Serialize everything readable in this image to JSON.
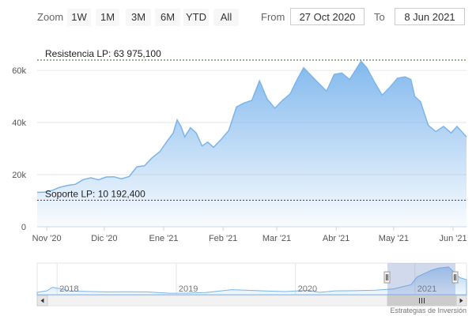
{
  "range_selector": {
    "zoom_label": "Zoom",
    "buttons": [
      "1W",
      "1M",
      "3M",
      "6M",
      "YTD",
      "All"
    ],
    "from_label": "From",
    "from_value": "27 Oct 2020",
    "to_label": "To",
    "to_value": "8 Jun 2021"
  },
  "chart_data": {
    "type": "area",
    "title": "",
    "xlabel": "",
    "ylabel": "",
    "x_ticks": [
      "Nov '20",
      "Dic '20",
      "Ene '21",
      "Feb '21",
      "Mar '21",
      "Abr '21",
      "May '21",
      "Jun '21"
    ],
    "y_ticks": [
      "0",
      "20k",
      "40k",
      "60k"
    ],
    "ylim": [
      0,
      67000
    ],
    "x_start": "2020-10-27",
    "x_end": "2021-06-08",
    "series": [
      {
        "color": "#7cb5ec",
        "points": [
          [
            "2020-10-27",
            13200
          ],
          [
            "2020-10-31",
            13300
          ],
          [
            "2020-11-04",
            14000
          ],
          [
            "2020-11-08",
            15200
          ],
          [
            "2020-11-12",
            15900
          ],
          [
            "2020-11-16",
            16300
          ],
          [
            "2020-11-20",
            18100
          ],
          [
            "2020-11-24",
            18800
          ],
          [
            "2020-11-28",
            18000
          ],
          [
            "2020-12-02",
            19100
          ],
          [
            "2020-12-06",
            19200
          ],
          [
            "2020-12-10",
            18400
          ],
          [
            "2020-12-14",
            19300
          ],
          [
            "2020-12-18",
            23000
          ],
          [
            "2020-12-22",
            23400
          ],
          [
            "2020-12-26",
            26500
          ],
          [
            "2020-12-30",
            28800
          ],
          [
            "2021-01-03",
            33000
          ],
          [
            "2021-01-06",
            36000
          ],
          [
            "2021-01-08",
            41000
          ],
          [
            "2021-01-10",
            38500
          ],
          [
            "2021-01-12",
            34500
          ],
          [
            "2021-01-15",
            38000
          ],
          [
            "2021-01-18",
            36000
          ],
          [
            "2021-01-21",
            31000
          ],
          [
            "2021-01-24",
            32500
          ],
          [
            "2021-01-27",
            30500
          ],
          [
            "2021-01-31",
            33500
          ],
          [
            "2021-02-04",
            37000
          ],
          [
            "2021-02-08",
            46000
          ],
          [
            "2021-02-12",
            47500
          ],
          [
            "2021-02-16",
            48500
          ],
          [
            "2021-02-20",
            56000
          ],
          [
            "2021-02-24",
            49000
          ],
          [
            "2021-02-28",
            45500
          ],
          [
            "2021-03-04",
            48500
          ],
          [
            "2021-03-08",
            51000
          ],
          [
            "2021-03-12",
            57000
          ],
          [
            "2021-03-15",
            61000
          ],
          [
            "2021-03-19",
            58000
          ],
          [
            "2021-03-23",
            55000
          ],
          [
            "2021-03-27",
            52000
          ],
          [
            "2021-03-31",
            58500
          ],
          [
            "2021-04-04",
            59000
          ],
          [
            "2021-04-08",
            56500
          ],
          [
            "2021-04-11",
            60000
          ],
          [
            "2021-04-14",
            63500
          ],
          [
            "2021-04-17",
            61000
          ],
          [
            "2021-04-21",
            55500
          ],
          [
            "2021-04-25",
            50500
          ],
          [
            "2021-04-29",
            53500
          ],
          [
            "2021-05-03",
            57000
          ],
          [
            "2021-05-07",
            57500
          ],
          [
            "2021-05-10",
            56500
          ],
          [
            "2021-05-12",
            50000
          ],
          [
            "2021-05-15",
            48000
          ],
          [
            "2021-05-19",
            39000
          ],
          [
            "2021-05-23",
            36500
          ],
          [
            "2021-05-27",
            38500
          ],
          [
            "2021-05-31",
            36000
          ],
          [
            "2021-06-03",
            38500
          ],
          [
            "2021-06-08",
            34500
          ]
        ]
      }
    ],
    "plot_lines": [
      {
        "label": "Resistencia LP: 63 975,100",
        "value": 63975.1,
        "color": "#2f6b2f"
      },
      {
        "label": "Soporte LP: 10 192,400",
        "value": 10192.4,
        "color": "#8b1a1a"
      }
    ]
  },
  "navigator": {
    "year_labels": [
      "2018",
      "2019",
      "2020",
      "2021"
    ],
    "series": [
      [
        "2017-11-01",
        5500
      ],
      [
        "2017-12-01",
        9000
      ],
      [
        "2017-12-18",
        17000
      ],
      [
        "2018-01-15",
        13000
      ],
      [
        "2018-02-10",
        8500
      ],
      [
        "2018-04-01",
        7500
      ],
      [
        "2018-06-01",
        6500
      ],
      [
        "2018-08-01",
        6800
      ],
      [
        "2018-10-01",
        6500
      ],
      [
        "2018-12-10",
        3500
      ],
      [
        "2019-02-01",
        3600
      ],
      [
        "2019-04-01",
        5000
      ],
      [
        "2019-06-20",
        11500
      ],
      [
        "2019-08-01",
        10500
      ],
      [
        "2019-10-01",
        8500
      ],
      [
        "2019-12-01",
        7300
      ],
      [
        "2020-02-10",
        10000
      ],
      [
        "2020-03-15",
        5500
      ],
      [
        "2020-05-01",
        8800
      ],
      [
        "2020-07-01",
        9200
      ],
      [
        "2020-09-01",
        10500
      ],
      [
        "2020-10-27",
        13200
      ],
      [
        "2020-12-20",
        23000
      ],
      [
        "2021-01-08",
        41000
      ],
      [
        "2021-02-20",
        56000
      ],
      [
        "2021-03-15",
        61000
      ],
      [
        "2021-04-14",
        63500
      ],
      [
        "2021-05-19",
        39000
      ],
      [
        "2021-06-08",
        34500
      ]
    ]
  },
  "credit": "Estrategias de Inversión"
}
